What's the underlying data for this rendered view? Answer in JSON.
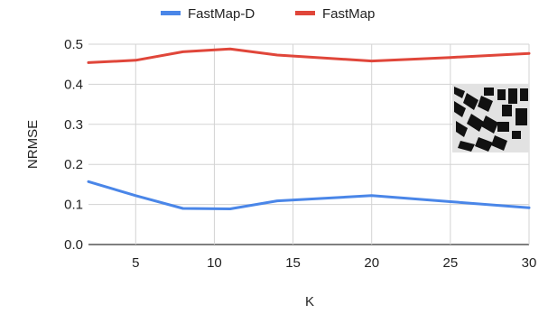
{
  "chart_data": {
    "type": "line",
    "title": "",
    "xlabel": "K",
    "ylabel": "NRMSE",
    "xlim": [
      2,
      30
    ],
    "ylim": [
      0,
      0.5
    ],
    "x_ticks": [
      "5",
      "10",
      "15",
      "20",
      "25",
      "30"
    ],
    "y_ticks": [
      "0.0",
      "0.1",
      "0.2",
      "0.3",
      "0.4",
      "0.5"
    ],
    "grid": true,
    "legend_position": "top",
    "x": [
      2,
      5,
      8,
      11,
      14,
      20,
      25,
      30
    ],
    "series": [
      {
        "name": "FastMap-D",
        "color": "#4a86e8",
        "values": [
          0.157,
          0.122,
          0.09,
          0.089,
          0.109,
          0.122,
          0.107,
          0.092
        ]
      },
      {
        "name": "FastMap",
        "color": "#e0463a",
        "values": [
          0.454,
          0.46,
          0.481,
          0.488,
          0.473,
          0.458,
          0.467,
          0.477
        ]
      }
    ],
    "inset_image": "building-map-thumbnail"
  }
}
